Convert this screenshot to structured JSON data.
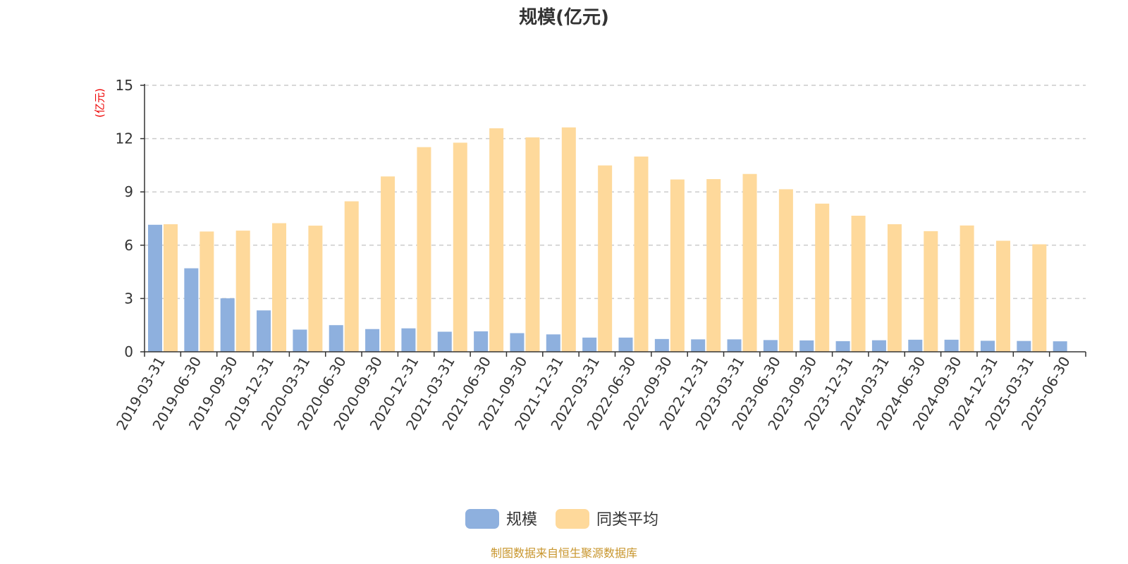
{
  "chart_data": {
    "type": "bar",
    "title": "规模(亿元)",
    "ylabel": "(亿元)",
    "ylim": [
      0,
      15
    ],
    "yticks": [
      "0",
      "3",
      "6",
      "9",
      "12",
      "15"
    ],
    "grid": true,
    "legend_position": "bottom",
    "categories": [
      "2019-03-31",
      "2019-06-30",
      "2019-09-30",
      "2019-12-31",
      "2020-03-31",
      "2020-06-30",
      "2020-09-30",
      "2020-12-31",
      "2021-03-31",
      "2021-06-30",
      "2021-09-30",
      "2021-12-31",
      "2022-03-31",
      "2022-06-30",
      "2022-09-30",
      "2022-12-31",
      "2023-03-31",
      "2023-06-30",
      "2023-09-30",
      "2023-12-31",
      "2024-03-31",
      "2024-06-30",
      "2024-09-30",
      "2024-12-31",
      "2025-03-31",
      "2025-06-30"
    ],
    "series": [
      {
        "name": "规模",
        "color": "#8eb0de",
        "values": [
          7.15,
          4.7,
          3.01,
          2.33,
          1.25,
          1.5,
          1.28,
          1.32,
          1.13,
          1.15,
          1.05,
          0.98,
          0.8,
          0.8,
          0.72,
          0.7,
          0.7,
          0.66,
          0.64,
          0.6,
          0.65,
          0.68,
          0.68,
          0.62,
          0.61,
          0.59
        ]
      },
      {
        "name": "同类平均",
        "color": "#fed99b",
        "values": [
          7.18,
          6.77,
          6.82,
          7.24,
          7.1,
          8.47,
          9.87,
          11.52,
          11.77,
          12.58,
          12.07,
          12.63,
          10.49,
          10.99,
          9.7,
          9.72,
          10.01,
          9.15,
          8.34,
          7.66,
          7.18,
          6.79,
          7.11,
          6.25,
          6.05,
          null
        ]
      }
    ]
  },
  "source_text": "制图数据来自恒生聚源数据库"
}
